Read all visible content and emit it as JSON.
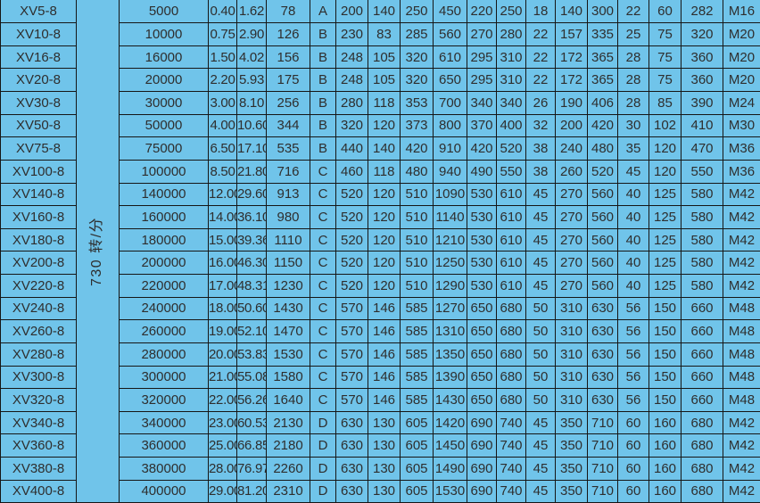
{
  "colors": {
    "cell_background": "#70C4EA",
    "grid_border": "#161616",
    "text": "#2e2e2e"
  },
  "table": {
    "speed_label": "730 转/分",
    "rows": [
      {
        "model": "XV5-8",
        "values": [
          "5000",
          "0.40",
          "1.62",
          "78",
          "A",
          "200",
          "140",
          "250",
          "450",
          "220",
          "250",
          "18",
          "140",
          "300",
          "22",
          "60",
          "282",
          "M16"
        ]
      },
      {
        "model": "XV10-8",
        "values": [
          "10000",
          "0.75",
          "2.90",
          "126",
          "B",
          "230",
          "83",
          "285",
          "560",
          "270",
          "280",
          "22",
          "157",
          "335",
          "25",
          "75",
          "320",
          "M20"
        ]
      },
      {
        "model": "XV16-8",
        "values": [
          "16000",
          "1.50",
          "4.02",
          "156",
          "B",
          "248",
          "105",
          "320",
          "610",
          "295",
          "310",
          "22",
          "172",
          "365",
          "28",
          "75",
          "360",
          "M20"
        ]
      },
      {
        "model": "XV20-8",
        "values": [
          "20000",
          "2.20",
          "5.93",
          "175",
          "B",
          "248",
          "105",
          "320",
          "650",
          "295",
          "310",
          "22",
          "172",
          "365",
          "28",
          "75",
          "360",
          "M20"
        ]
      },
      {
        "model": "XV30-8",
        "values": [
          "30000",
          "3.00",
          "8.10",
          "256",
          "B",
          "280",
          "118",
          "353",
          "700",
          "340",
          "340",
          "26",
          "190",
          "406",
          "28",
          "85",
          "390",
          "M24"
        ]
      },
      {
        "model": "XV50-8",
        "values": [
          "50000",
          "4.00",
          "10.60",
          "344",
          "B",
          "320",
          "120",
          "373",
          "800",
          "370",
          "400",
          "32",
          "200",
          "420",
          "30",
          "102",
          "410",
          "M30"
        ]
      },
      {
        "model": "XV75-8",
        "values": [
          "75000",
          "6.50",
          "17.10",
          "535",
          "B",
          "440",
          "140",
          "420",
          "910",
          "420",
          "520",
          "38",
          "240",
          "480",
          "35",
          "120",
          "470",
          "M36"
        ]
      },
      {
        "model": "XV100-8",
        "values": [
          "100000",
          "8.50",
          "21.80",
          "716",
          "C",
          "460",
          "118",
          "480",
          "940",
          "490",
          "550",
          "38",
          "260",
          "520",
          "45",
          "120",
          "550",
          "M36"
        ]
      },
      {
        "model": "XV140-8",
        "values": [
          "140000",
          "12.00",
          "29.60",
          "913",
          "C",
          "520",
          "120",
          "510",
          "1090",
          "530",
          "610",
          "45",
          "270",
          "560",
          "40",
          "125",
          "580",
          "M42"
        ]
      },
      {
        "model": "XV160-8",
        "values": [
          "160000",
          "14.00",
          "36.10",
          "980",
          "C",
          "520",
          "120",
          "510",
          "1140",
          "530",
          "610",
          "45",
          "270",
          "560",
          "40",
          "125",
          "580",
          "M42"
        ]
      },
      {
        "model": "XV180-8",
        "values": [
          "180000",
          "15.00",
          "39.36",
          "1110",
          "C",
          "520",
          "120",
          "510",
          "1210",
          "530",
          "610",
          "45",
          "270",
          "560",
          "40",
          "125",
          "580",
          "M42"
        ]
      },
      {
        "model": "XV200-8",
        "values": [
          "200000",
          "16.00",
          "46.30",
          "1150",
          "C",
          "520",
          "120",
          "510",
          "1250",
          "530",
          "610",
          "45",
          "270",
          "560",
          "40",
          "125",
          "580",
          "M42"
        ]
      },
      {
        "model": "XV220-8",
        "values": [
          "220000",
          "17.00",
          "48.31",
          "1230",
          "C",
          "520",
          "120",
          "510",
          "1290",
          "530",
          "610",
          "45",
          "270",
          "560",
          "40",
          "125",
          "580",
          "M42"
        ]
      },
      {
        "model": "XV240-8",
        "values": [
          "240000",
          "18.00",
          "50.60",
          "1430",
          "C",
          "570",
          "146",
          "585",
          "1270",
          "650",
          "680",
          "50",
          "310",
          "630",
          "56",
          "150",
          "660",
          "M48"
        ]
      },
      {
        "model": "XV260-8",
        "values": [
          "260000",
          "19.00",
          "52.10",
          "1470",
          "C",
          "570",
          "146",
          "585",
          "1310",
          "650",
          "680",
          "50",
          "310",
          "630",
          "56",
          "150",
          "660",
          "M48"
        ]
      },
      {
        "model": "XV280-8",
        "values": [
          "280000",
          "20.00",
          "53.83",
          "1530",
          "C",
          "570",
          "146",
          "585",
          "1350",
          "650",
          "680",
          "50",
          "310",
          "630",
          "56",
          "150",
          "660",
          "M48"
        ]
      },
      {
        "model": "XV300-8",
        "values": [
          "300000",
          "21.00",
          "55.08",
          "1580",
          "C",
          "570",
          "146",
          "585",
          "1390",
          "650",
          "680",
          "50",
          "310",
          "630",
          "56",
          "150",
          "660",
          "M48"
        ]
      },
      {
        "model": "XV320-8",
        "values": [
          "320000",
          "22.00",
          "56.26",
          "1640",
          "C",
          "570",
          "146",
          "585",
          "1430",
          "650",
          "680",
          "50",
          "310",
          "630",
          "56",
          "150",
          "660",
          "M48"
        ]
      },
      {
        "model": "XV340-8",
        "values": [
          "340000",
          "23.00",
          "60.53",
          "2130",
          "D",
          "630",
          "130",
          "605",
          "1420",
          "690",
          "740",
          "45",
          "350",
          "710",
          "60",
          "160",
          "680",
          "M42"
        ]
      },
      {
        "model": "XV360-8",
        "values": [
          "360000",
          "25.00",
          "66.85",
          "2180",
          "D",
          "630",
          "130",
          "605",
          "1450",
          "690",
          "740",
          "45",
          "350",
          "710",
          "60",
          "160",
          "680",
          "M42"
        ]
      },
      {
        "model": "XV380-8",
        "values": [
          "380000",
          "28.00",
          "76.97",
          "2260",
          "D",
          "630",
          "130",
          "605",
          "1490",
          "690",
          "740",
          "45",
          "350",
          "710",
          "60",
          "160",
          "680",
          "M42"
        ]
      },
      {
        "model": "XV400-8",
        "values": [
          "400000",
          "29.00",
          "81.20",
          "2310",
          "D",
          "630",
          "130",
          "605",
          "1530",
          "690",
          "740",
          "45",
          "350",
          "710",
          "60",
          "160",
          "680",
          "M42"
        ]
      }
    ]
  }
}
